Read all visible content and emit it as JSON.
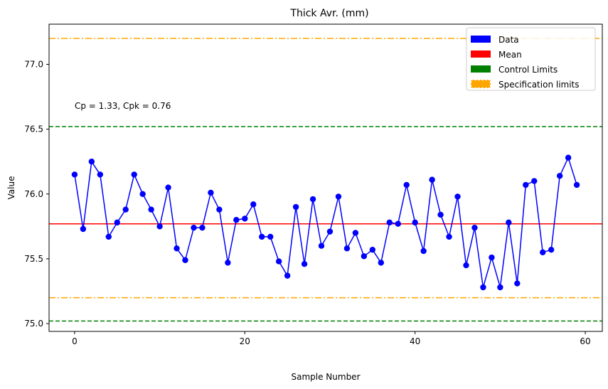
{
  "chart_data": {
    "type": "line",
    "title": "Thick Avr. (mm)",
    "xlabel": "Sample Number",
    "ylabel": "Value",
    "xlim": [
      -3,
      62
    ],
    "ylim": [
      74.94,
      77.31
    ],
    "xticks": [
      0,
      20,
      40,
      60
    ],
    "yticks": [
      75.0,
      75.5,
      76.0,
      76.5,
      77.0
    ],
    "ytick_labels": [
      "75.0",
      "75.5",
      "76.0",
      "76.5",
      "77.0"
    ],
    "annotation": "Cp = 1.33, Cpk = 0.76",
    "mean": 75.77,
    "control_limits": {
      "upper": 76.52,
      "lower": 75.02
    },
    "spec_limits": {
      "upper": 77.2,
      "lower": 75.2
    },
    "legend": {
      "placement": "top-right",
      "entries": [
        "Data",
        "Mean",
        "Control Limits",
        "Specification limits"
      ]
    },
    "colors": {
      "data": "#0000ff",
      "mean": "#ff0000",
      "control": "#008000",
      "spec": "#ffa500"
    },
    "series": [
      {
        "name": "Data",
        "x": [
          0,
          1,
          2,
          3,
          4,
          5,
          6,
          7,
          8,
          9,
          10,
          11,
          12,
          13,
          14,
          15,
          16,
          17,
          18,
          19,
          20,
          21,
          22,
          23,
          24,
          25,
          26,
          27,
          28,
          29,
          30,
          31,
          32,
          33,
          34,
          35,
          36,
          37,
          38,
          39,
          40,
          41,
          42,
          43,
          44,
          45,
          46,
          47,
          48,
          49,
          50,
          51,
          52,
          53,
          54,
          55,
          56,
          57,
          58,
          59
        ],
        "values": [
          76.15,
          75.73,
          76.25,
          76.15,
          75.67,
          75.78,
          75.88,
          76.15,
          76.0,
          75.88,
          75.75,
          76.05,
          75.58,
          75.49,
          75.74,
          75.74,
          76.01,
          75.88,
          75.47,
          75.8,
          75.81,
          75.92,
          75.67,
          75.67,
          75.48,
          75.37,
          75.9,
          75.46,
          75.96,
          75.6,
          75.71,
          75.98,
          75.58,
          75.7,
          75.52,
          75.57,
          75.47,
          75.78,
          75.77,
          76.07,
          75.78,
          75.56,
          76.11,
          75.84,
          75.67,
          75.98,
          75.45,
          75.74,
          75.28,
          75.51,
          75.28,
          75.78,
          75.31,
          76.07,
          76.1,
          75.55,
          75.57,
          76.14,
          76.28,
          76.07
        ]
      }
    ]
  }
}
